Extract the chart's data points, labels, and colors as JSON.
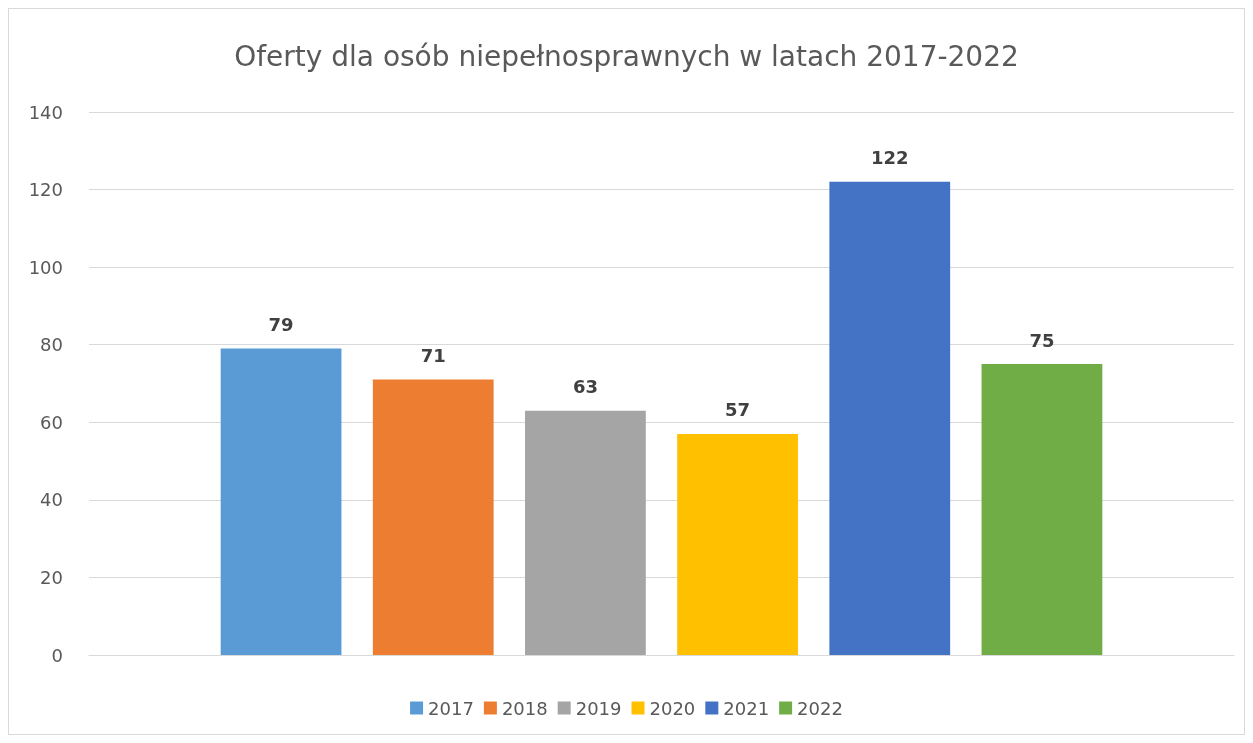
{
  "chart_data": {
    "type": "bar",
    "title": "Oferty dla osób niepełnosprawnych w latach 2017-2022",
    "categories": [
      null
    ],
    "series": [
      {
        "name": "2017",
        "color": "#5b9bd5",
        "values": [
          79
        ]
      },
      {
        "name": "2018",
        "color": "#ed7d31",
        "values": [
          71
        ]
      },
      {
        "name": "2019",
        "color": "#a5a5a5",
        "values": [
          63
        ]
      },
      {
        "name": "2020",
        "color": "#ffc000",
        "values": [
          57
        ]
      },
      {
        "name": "2021",
        "color": "#4472c4",
        "values": [
          122
        ]
      },
      {
        "name": "2022",
        "color": "#70ad47",
        "values": [
          75
        ]
      }
    ],
    "ylim": [
      0,
      140
    ],
    "yticks": [
      0,
      20,
      40,
      60,
      80,
      100,
      120,
      140
    ],
    "grid": "y",
    "legend": "bottom",
    "data_labels": true
  }
}
